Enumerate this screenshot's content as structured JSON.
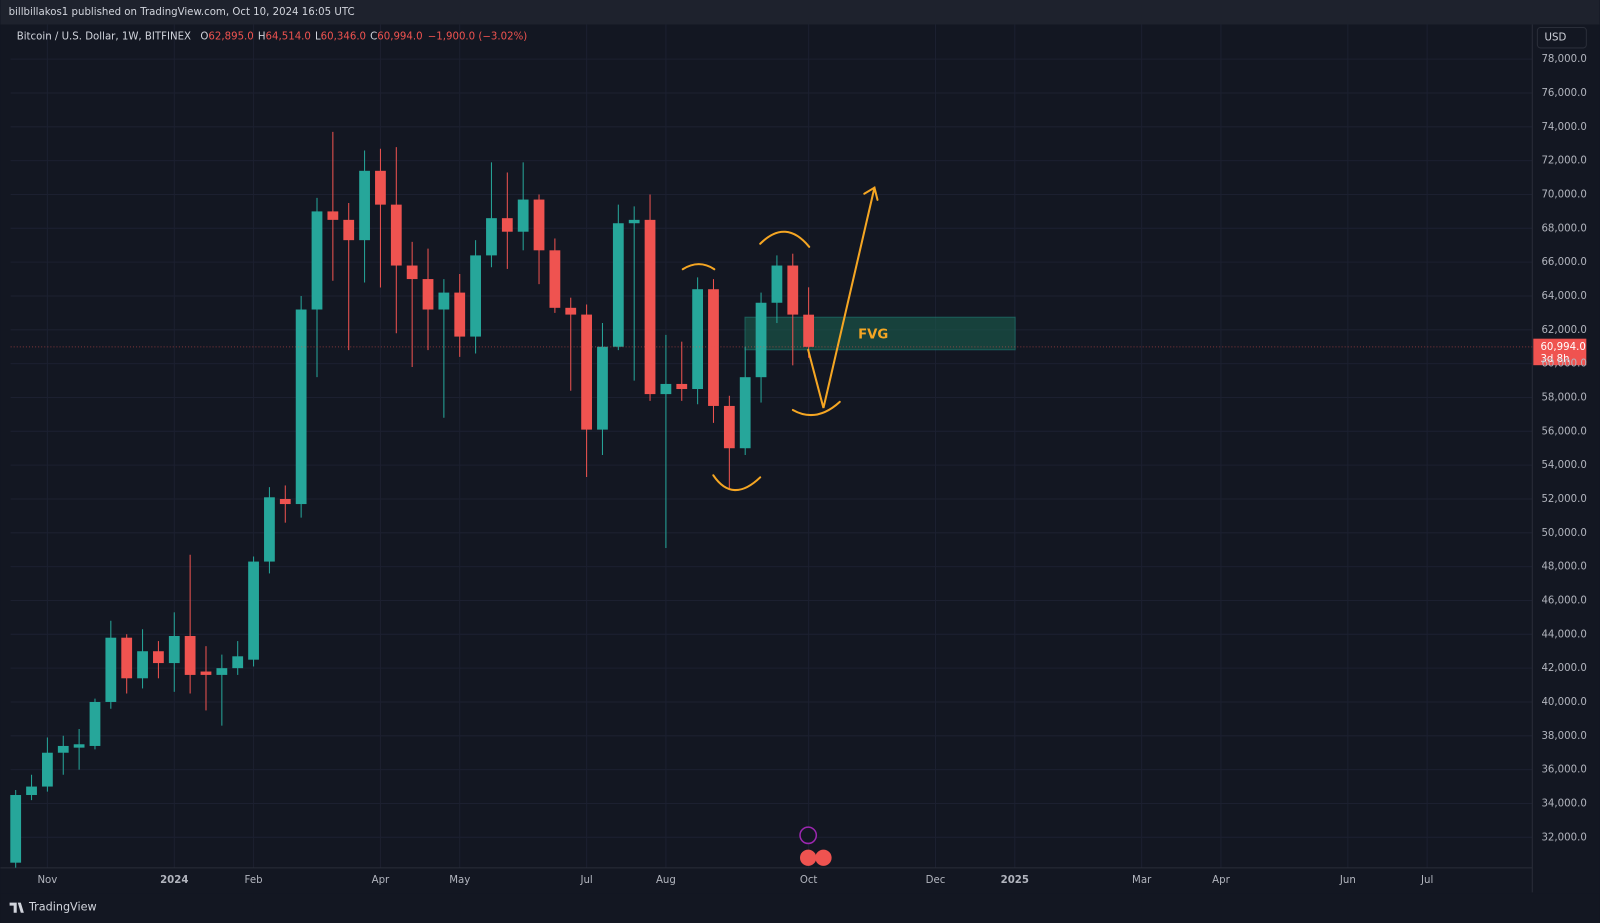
{
  "header": {
    "publisher": "billbillakos1 published on TradingView.com, Oct 10, 2024 16:05 UTC"
  },
  "footer": {
    "brand": "TradingView"
  },
  "chart_data": {
    "type": "candlestick",
    "title": "Bitcoin / U.S. Dollar, 1W, BITFINEX",
    "ohlc_text": [
      "O",
      "62,895.0",
      "H",
      "64,514.0",
      "L",
      "60,346.0",
      "C",
      "60,994.0",
      "−1,900.0 (−3.02%)"
    ],
    "currency": "USD",
    "last_price_label": "60,994.0",
    "countdown": "3d 8h",
    "annotation": "FVG",
    "up_color": "#26a69a",
    "down_color": "#ef5350",
    "grid": true,
    "open": [
      30500,
      34500,
      35000,
      37000,
      37300,
      37400,
      40000,
      43800,
      41400,
      43000,
      42300,
      43900,
      41800,
      41600,
      42000,
      42500,
      48300,
      52000,
      51700,
      63200,
      69000,
      68500,
      67300,
      71400,
      69400,
      65800,
      65000,
      63200,
      64200,
      61600,
      66400,
      68600,
      67800,
      69700,
      66700,
      63300,
      62900,
      56100,
      61000,
      68300,
      68500,
      58200,
      58800,
      58500,
      64400,
      57500,
      55000,
      59200,
      63600,
      65800,
      62895
    ],
    "high": [
      34800,
      35700,
      37900,
      38000,
      38400,
      40200,
      44800,
      44000,
      44300,
      43600,
      45300,
      48700,
      43300,
      42800,
      43600,
      48600,
      52700,
      52800,
      64000,
      69800,
      73700,
      69500,
      72600,
      72700,
      72800,
      67200,
      66800,
      65000,
      65300,
      67300,
      71900,
      71300,
      71900,
      70000,
      67400,
      63900,
      63500,
      62400,
      69400,
      69300,
      70000,
      61700,
      61300,
      65100,
      65000,
      58100,
      61000,
      64200,
      66400,
      66500,
      64514
    ],
    "low": [
      30200,
      34200,
      34700,
      35700,
      36000,
      37200,
      39600,
      40500,
      40800,
      41400,
      40600,
      40500,
      39500,
      38600,
      41600,
      42100,
      47600,
      50600,
      50900,
      59200,
      64900,
      60800,
      64800,
      64500,
      61800,
      59800,
      60800,
      56800,
      60400,
      60600,
      65700,
      65600,
      66700,
      64700,
      63000,
      58400,
      53300,
      54600,
      60800,
      59000,
      57800,
      49100,
      57800,
      57600,
      56500,
      52600,
      54600,
      57700,
      62400,
      59900,
      60346
    ],
    "close": [
      34500,
      35000,
      37000,
      37400,
      37500,
      40000,
      43800,
      41400,
      43000,
      42300,
      43900,
      41600,
      41600,
      42000,
      42700,
      48300,
      52100,
      51700,
      63200,
      69000,
      68500,
      67300,
      71400,
      69400,
      65800,
      65000,
      63200,
      64200,
      61600,
      66400,
      68600,
      67800,
      69700,
      66700,
      63300,
      62900,
      56100,
      61000,
      68300,
      68500,
      58200,
      58800,
      58500,
      64400,
      57500,
      55000,
      59200,
      63600,
      65800,
      62900,
      60994
    ],
    "xlim": [
      -0.32,
      95.63
    ],
    "xticks": [
      {
        "value": 2,
        "label": "Nov"
      },
      {
        "value": 10,
        "label": "2024"
      },
      {
        "value": 15,
        "label": "Feb"
      },
      {
        "value": 23,
        "label": "Apr"
      },
      {
        "value": 28,
        "label": "May"
      },
      {
        "value": 36,
        "label": "Jul"
      },
      {
        "value": 41,
        "label": "Aug"
      },
      {
        "value": 50,
        "label": "Oct"
      },
      {
        "value": 58,
        "label": "Dec"
      },
      {
        "value": 63,
        "label": "2025"
      },
      {
        "value": 71,
        "label": "Mar"
      },
      {
        "value": 76,
        "label": "Apr"
      },
      {
        "value": 84,
        "label": "Jun"
      },
      {
        "value": 89,
        "label": "Jul"
      }
    ],
    "ylim": [
      30190,
      80050
    ],
    "yticks": [
      {
        "value": 32000,
        "label": "32,000.0"
      },
      {
        "value": 34000,
        "label": "34,000.0"
      },
      {
        "value": 36000,
        "label": "36,000.0"
      },
      {
        "value": 38000,
        "label": "38,000.0"
      },
      {
        "value": 40000,
        "label": "40,000.0"
      },
      {
        "value": 42000,
        "label": "42,000.0"
      },
      {
        "value": 44000,
        "label": "44,000.0"
      },
      {
        "value": 46000,
        "label": "46,000.0"
      },
      {
        "value": 48000,
        "label": "48,000.0"
      },
      {
        "value": 50000,
        "label": "50,000.0"
      },
      {
        "value": 52000,
        "label": "52,000.0"
      },
      {
        "value": 54000,
        "label": "54,000.0"
      },
      {
        "value": 56000,
        "label": "56,000.0"
      },
      {
        "value": 58000,
        "label": "58,000.0"
      },
      {
        "value": 60000,
        "label": "60,000.0"
      },
      {
        "value": 62000,
        "label": "62,000.0"
      },
      {
        "value": 64000,
        "label": "64,000.0"
      },
      {
        "value": 66000,
        "label": "66,000.0"
      },
      {
        "value": 68000,
        "label": "68,000.0"
      },
      {
        "value": 70000,
        "label": "70,000.0"
      },
      {
        "value": 72000,
        "label": "72,000.0"
      },
      {
        "value": 74000,
        "label": "74,000.0"
      },
      {
        "value": 76000,
        "label": "76,000.0"
      },
      {
        "value": 78000,
        "label": "78,000.0"
      }
    ]
  }
}
